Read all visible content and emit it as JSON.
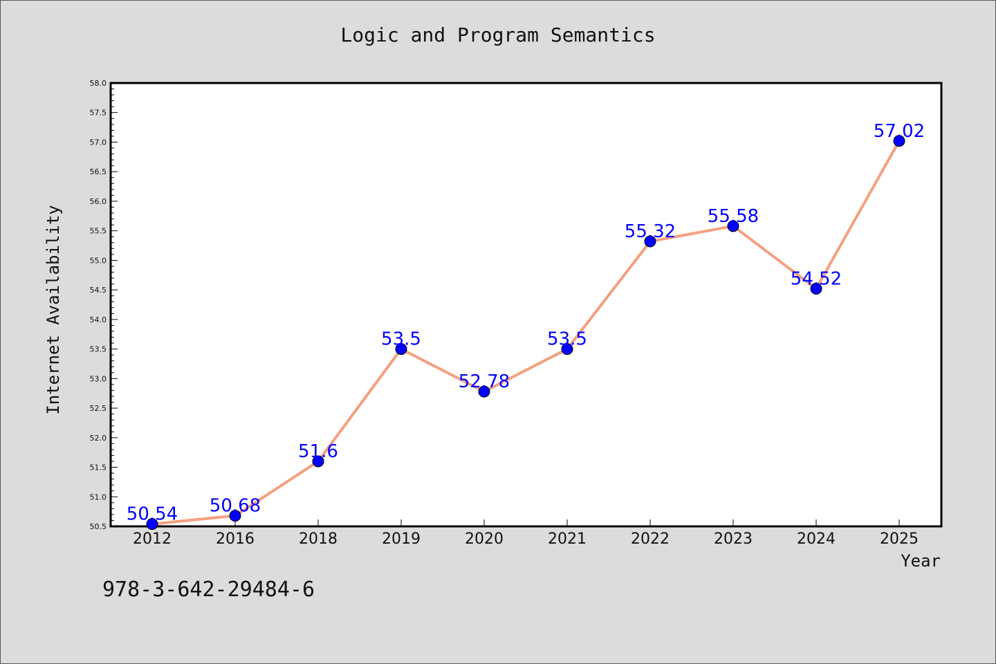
{
  "chart_data": {
    "type": "line",
    "title": "Logic and Program Semantics",
    "xlabel": "Year",
    "ylabel": "Internet Availability",
    "categories": [
      "2012",
      "2016",
      "2018",
      "2019",
      "2020",
      "2021",
      "2022",
      "2023",
      "2024",
      "2025"
    ],
    "series": [
      {
        "values": [
          50.54,
          50.68,
          51.6,
          53.5,
          52.78,
          53.5,
          55.32,
          55.58,
          54.52,
          57.02
        ],
        "labels": [
          "50.54",
          "50.68",
          "51.6",
          "53.5",
          "52.78",
          "53.5",
          "55.32",
          "55.58",
          "54.52",
          "57.02"
        ]
      }
    ],
    "ylim": [
      50.5,
      58.0
    ],
    "yticks": [
      "50.5",
      "51.0",
      "51.5",
      "52.0",
      "52.5",
      "53.0",
      "53.5",
      "54.0",
      "54.5",
      "55.0",
      "55.5",
      "56.0",
      "56.5",
      "57.0",
      "57.5",
      "58.0"
    ],
    "grid": false,
    "colors": {
      "line": "#f4a07f",
      "marker": "#0000ff",
      "label": "#0000ff",
      "background": "#dcdcdc",
      "plot_bg": "#ffffff"
    }
  },
  "footer": {
    "isbn": "978-3-642-29484-6"
  }
}
